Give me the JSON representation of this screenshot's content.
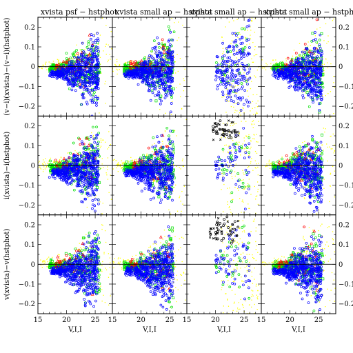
{
  "chart_data": {
    "type": "scatter",
    "layout": "3x4 grid",
    "column_titles": [
      "xvista psf − hstphot",
      "xvista small ap − hstphot",
      "xvista small ap − hstphot",
      "xvista small ap − hstphot"
    ],
    "row_ylabels": [
      "(v−i)(xvista)−(v−i)(hstphot)",
      "i(xvista)−i(hstphot)",
      "v(xvista)−v(hstphot)"
    ],
    "xlabel": "V,I,I",
    "xlim": [
      15,
      28
    ],
    "ylim": [
      -0.25,
      0.25
    ],
    "xticks": [
      15,
      20,
      25
    ],
    "yticks": [
      0.2,
      0.1,
      0,
      -0.1,
      -0.2
    ],
    "ytick_labels": [
      "0.2",
      "0.1",
      "0",
      "−0.1",
      "−0.2"
    ],
    "right_axis_labels": [
      "0.2",
      "0.1",
      "0",
      "−0.1",
      "−0.2"
    ],
    "zero_line": true,
    "point_colors": [
      "#000000",
      "#ff0000",
      "#00dd00",
      "#0000ff",
      "#ffff00"
    ],
    "series": [
      {
        "color": "#0000ff",
        "marker": "circle",
        "description_values": {
          "x_range": [
            17,
            26
          ],
          "y_center": -0.03
        }
      },
      {
        "color": "#00dd00",
        "marker": "square",
        "description_values": {
          "x_range": [
            18,
            26
          ],
          "y_center": -0.02
        }
      },
      {
        "color": "#ff0000",
        "marker": "triangle",
        "description_values": {
          "x_range": [
            18,
            25
          ],
          "y_center": 0
        }
      },
      {
        "color": "#ffff00",
        "marker": "dot",
        "description_values": {
          "x_range": [
            22,
            28
          ],
          "y_center": 0
        }
      },
      {
        "color": "#000000",
        "marker": "cross",
        "description_values": {
          "x_range": [
            19,
            24
          ],
          "y_center": 0.18
        }
      }
    ],
    "panel_styles": [
      [
        "main",
        "main",
        "sparse",
        "main"
      ],
      [
        "main",
        "main",
        "sparse-black-high",
        "main"
      ],
      [
        "main",
        "main",
        "sparse-black-high",
        "main"
      ]
    ]
  }
}
